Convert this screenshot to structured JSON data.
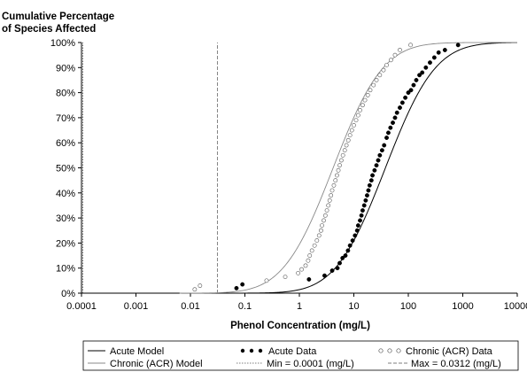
{
  "chart_data": {
    "type": "scatter",
    "title": "Cumulative Percentage",
    "subtitle": "of Species Affected",
    "xlabel": "Phenol Concentration  (mg/L)",
    "ylabel": "",
    "x_scale": "log",
    "xlim": [
      0.0001,
      10000
    ],
    "ylim": [
      0,
      100
    ],
    "x_ticks": [
      {
        "value": 0.0001,
        "label": "0.0001"
      },
      {
        "value": 0.001,
        "label": "0.001"
      },
      {
        "value": 0.01,
        "label": "0.01"
      },
      {
        "value": 0.1,
        "label": "0.1"
      },
      {
        "value": 1,
        "label": "1"
      },
      {
        "value": 10,
        "label": "10"
      },
      {
        "value": 100,
        "label": "100"
      },
      {
        "value": 1000,
        "label": "1000"
      },
      {
        "value": 10000,
        "label": "10000"
      }
    ],
    "y_ticks": [
      {
        "value": 0,
        "label": "0%"
      },
      {
        "value": 10,
        "label": "10%"
      },
      {
        "value": 20,
        "label": "20%"
      },
      {
        "value": 30,
        "label": "30%"
      },
      {
        "value": 40,
        "label": "40%"
      },
      {
        "value": 50,
        "label": "50%"
      },
      {
        "value": 60,
        "label": "60%"
      },
      {
        "value": 70,
        "label": "70%"
      },
      {
        "value": 80,
        "label": "80%"
      },
      {
        "value": 90,
        "label": "90%"
      },
      {
        "value": 100,
        "label": "100%"
      }
    ],
    "grid": false,
    "legend_position": "bottom",
    "models": [
      {
        "name": "Acute Model",
        "log10_median": 1.58,
        "log10_sd": 0.72,
        "color": "#000000"
      },
      {
        "name": "Chronic (ACR) Model",
        "log10_median": 0.62,
        "log10_sd": 0.72,
        "color": "#888888"
      }
    ],
    "series": [
      {
        "name": "Acute Data",
        "marker": "filled-circle",
        "points": [
          [
            0.07,
            2
          ],
          [
            0.09,
            3.5
          ],
          [
            1.5,
            5.5
          ],
          [
            2.9,
            7
          ],
          [
            4,
            9
          ],
          [
            5,
            10
          ],
          [
            5.5,
            12
          ],
          [
            6.2,
            14
          ],
          [
            7,
            15
          ],
          [
            7.8,
            17
          ],
          [
            8.5,
            19
          ],
          [
            9.5,
            21
          ],
          [
            10.5,
            23
          ],
          [
            11.5,
            25
          ],
          [
            12,
            27
          ],
          [
            13,
            29
          ],
          [
            13.8,
            31
          ],
          [
            14.5,
            33
          ],
          [
            15.5,
            35
          ],
          [
            16.5,
            37
          ],
          [
            17.5,
            39
          ],
          [
            18.5,
            41
          ],
          [
            19.5,
            43
          ],
          [
            21,
            45
          ],
          [
            22,
            47
          ],
          [
            24,
            49
          ],
          [
            26,
            51
          ],
          [
            28,
            53
          ],
          [
            30,
            55
          ],
          [
            33,
            57
          ],
          [
            36,
            59
          ],
          [
            40,
            62
          ],
          [
            43,
            64
          ],
          [
            47,
            66
          ],
          [
            52,
            68
          ],
          [
            57,
            70
          ],
          [
            62,
            72
          ],
          [
            70,
            74
          ],
          [
            78,
            76
          ],
          [
            88,
            78
          ],
          [
            100,
            80
          ],
          [
            112,
            81
          ],
          [
            125,
            83
          ],
          [
            140,
            85
          ],
          [
            160,
            87
          ],
          [
            180,
            88
          ],
          [
            210,
            90
          ],
          [
            250,
            92
          ],
          [
            300,
            94
          ],
          [
            360,
            96
          ],
          [
            470,
            97
          ],
          [
            820,
            99
          ]
        ]
      },
      {
        "name": "Chronic (ACR) Data",
        "marker": "open-circle",
        "points": [
          [
            0.012,
            1.5
          ],
          [
            0.015,
            3
          ],
          [
            0.25,
            5
          ],
          [
            0.55,
            6.5
          ],
          [
            0.95,
            8
          ],
          [
            1.1,
            9.5
          ],
          [
            1.3,
            11
          ],
          [
            1.45,
            13
          ],
          [
            1.55,
            15
          ],
          [
            1.7,
            17
          ],
          [
            1.9,
            19
          ],
          [
            2.1,
            21
          ],
          [
            2.3,
            23
          ],
          [
            2.5,
            25
          ],
          [
            2.6,
            27
          ],
          [
            2.8,
            29
          ],
          [
            3.0,
            31
          ],
          [
            3.2,
            33
          ],
          [
            3.4,
            35
          ],
          [
            3.6,
            37
          ],
          [
            3.8,
            39
          ],
          [
            4.0,
            41
          ],
          [
            4.3,
            43
          ],
          [
            4.6,
            45
          ],
          [
            4.9,
            47
          ],
          [
            5.2,
            49
          ],
          [
            5.5,
            51
          ],
          [
            5.9,
            53
          ],
          [
            6.3,
            55
          ],
          [
            6.8,
            57
          ],
          [
            7.3,
            59
          ],
          [
            7.9,
            61
          ],
          [
            8.5,
            63
          ],
          [
            9.2,
            65
          ],
          [
            10,
            67
          ],
          [
            11,
            69
          ],
          [
            12,
            71
          ],
          [
            13,
            73
          ],
          [
            14.5,
            75
          ],
          [
            16,
            77
          ],
          [
            18,
            79
          ],
          [
            20,
            81
          ],
          [
            23,
            83
          ],
          [
            26,
            85
          ],
          [
            30,
            87
          ],
          [
            35,
            89
          ],
          [
            40,
            91
          ],
          [
            48,
            93
          ],
          [
            57,
            95
          ],
          [
            70,
            97
          ],
          [
            110,
            99
          ]
        ]
      }
    ],
    "reference_lines": [
      {
        "name": "Min = 0.0001 (mg/L)",
        "x": 0.0001,
        "style": "dotted"
      },
      {
        "name": "Max = 0.0312 (mg/L)",
        "x": 0.0312,
        "style": "dashed"
      }
    ],
    "legend": {
      "acute_model": "Acute Model",
      "chronic_model": "Chronic (ACR) Model",
      "acute_data": "Acute Data",
      "chronic_data": "Chronic (ACR) Data",
      "min_line": "Min = 0.0001 (mg/L)",
      "max_line": "Max = 0.0312 (mg/L)"
    }
  }
}
